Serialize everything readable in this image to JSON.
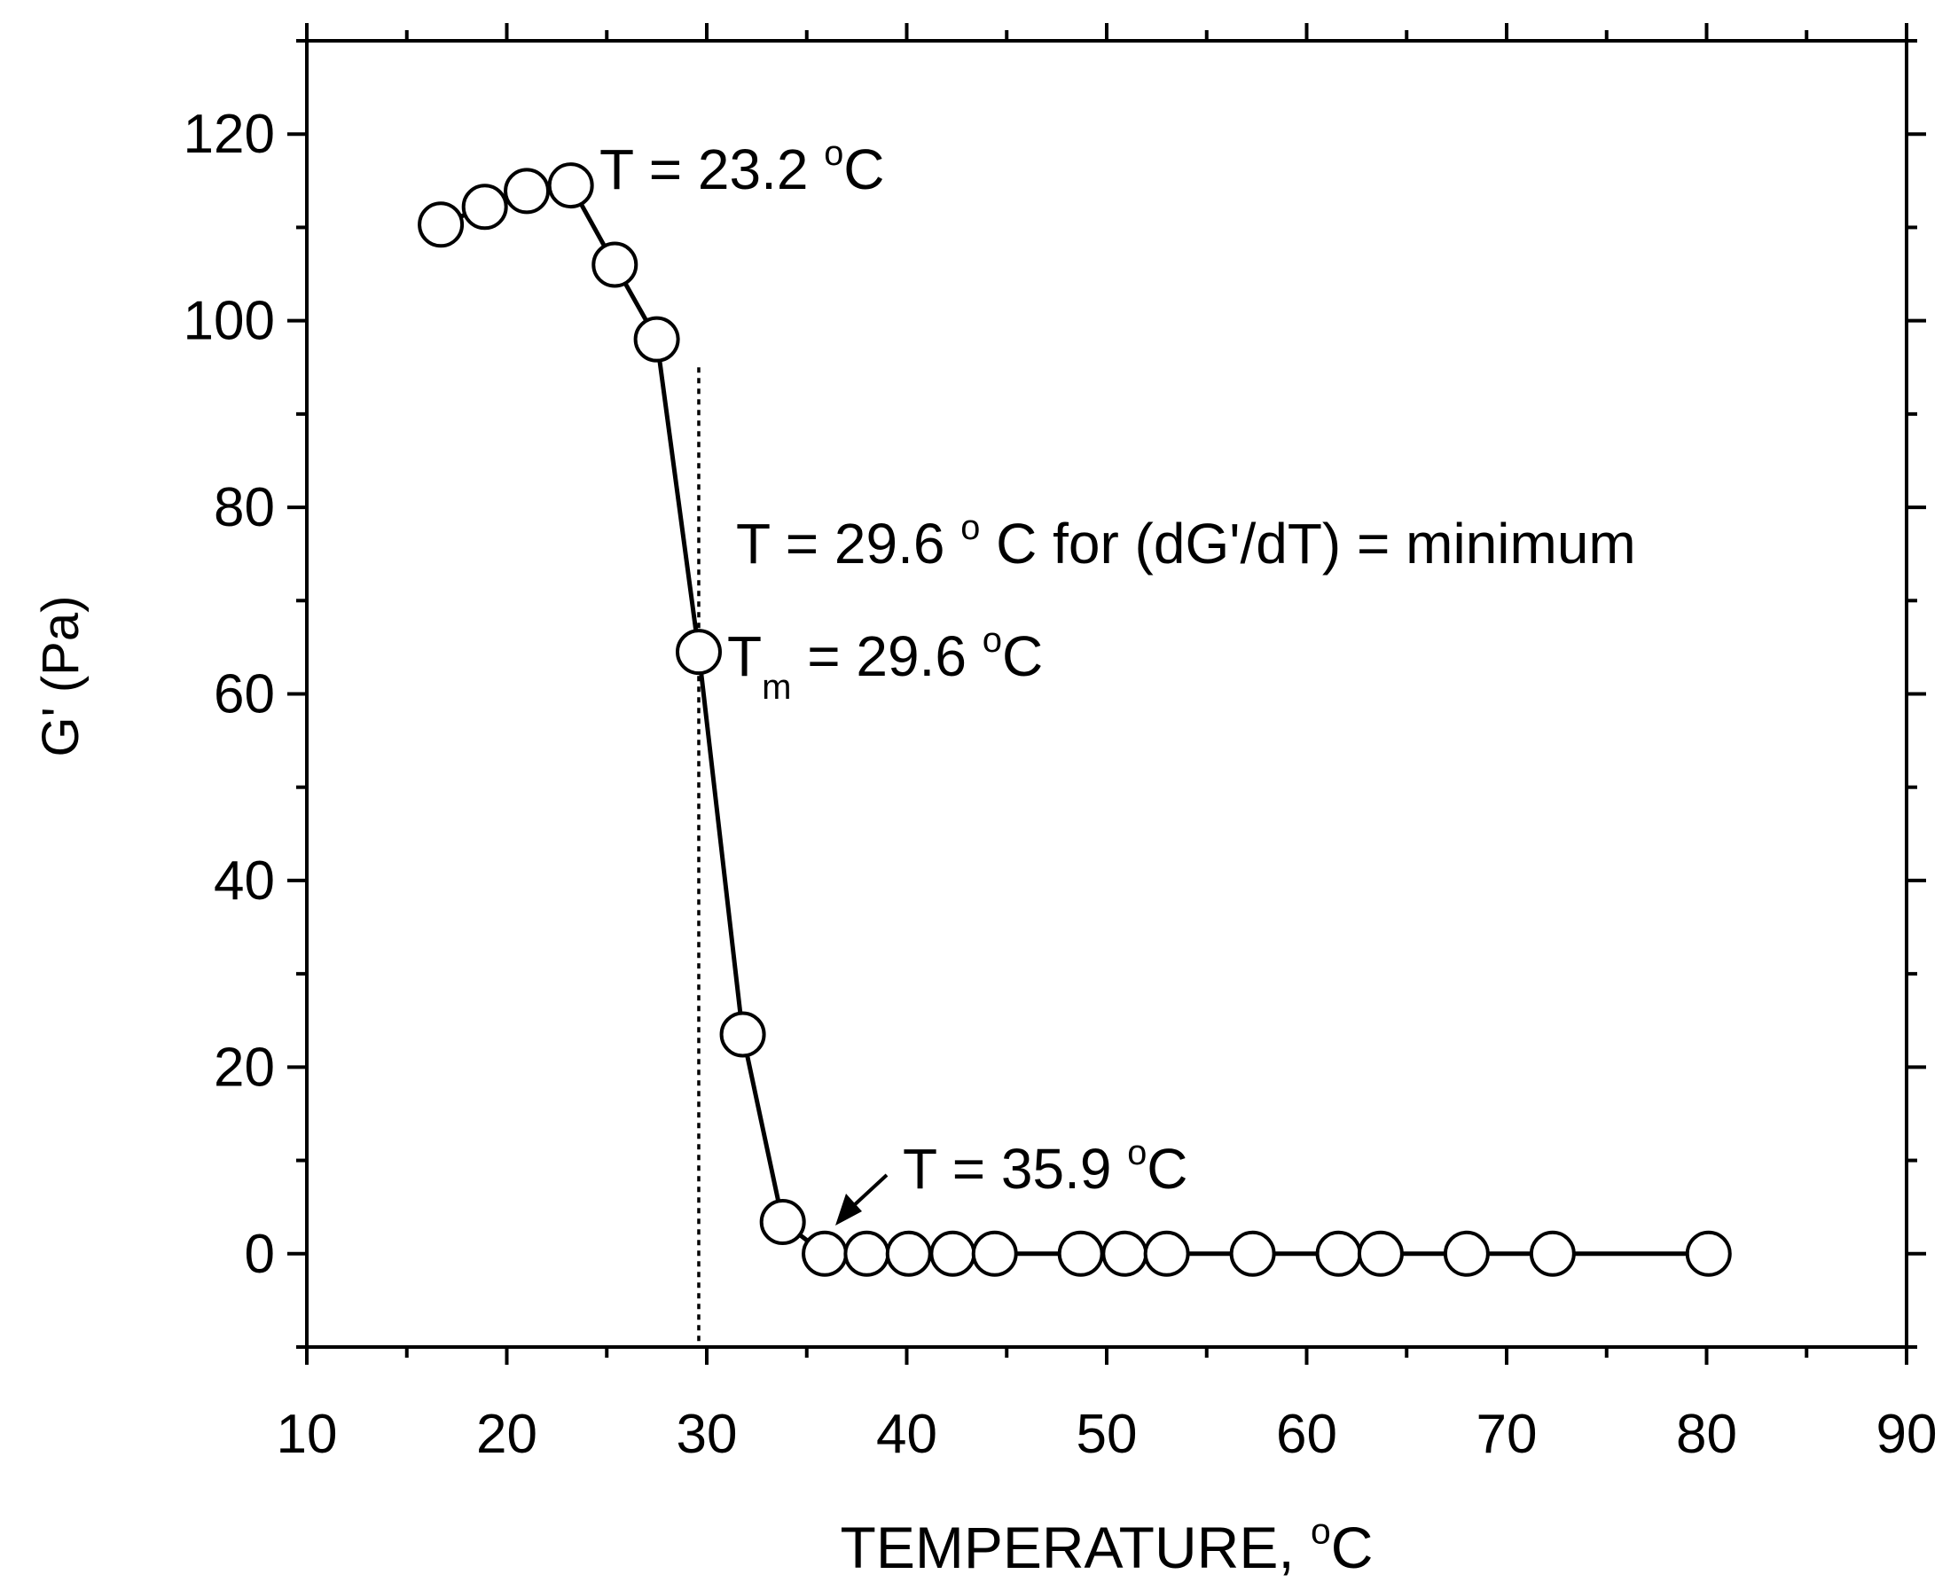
{
  "chart_data": {
    "type": "scatter",
    "xlabel": "TEMPERATURE, ",
    "xlabel_unit": "C",
    "ylabel": "G' (Pa)",
    "xlim": [
      10,
      90
    ],
    "ylim": [
      -10,
      130
    ],
    "x_ticks": [
      10,
      20,
      30,
      40,
      50,
      60,
      70,
      80,
      90
    ],
    "y_ticks": [
      0,
      20,
      40,
      60,
      80,
      100,
      120
    ],
    "x_tick_labels": [
      "10",
      "20",
      "30",
      "40",
      "50",
      "60",
      "70",
      "80",
      "90"
    ],
    "y_tick_labels": [
      "0",
      "20",
      "40",
      "60",
      "80",
      "100",
      "120"
    ],
    "grid": false,
    "marker": "open-circle",
    "line_color": "#000000",
    "series": [
      {
        "x": [
          16.7,
          18.9,
          21.0,
          23.2,
          25.4,
          27.5,
          29.6,
          31.8,
          33.8,
          35.9,
          38.0,
          40.1,
          42.3,
          44.4,
          48.7,
          50.9,
          53.0,
          57.3,
          61.6,
          63.7,
          68.0,
          72.3,
          80.1
        ],
        "y": [
          110.3,
          112.2,
          113.9,
          114.5,
          106.0,
          98.0,
          64.5,
          23.5,
          3.4,
          0,
          0,
          0,
          0,
          0,
          0,
          0,
          0,
          0,
          0,
          0,
          0,
          0,
          0
        ]
      }
    ],
    "reference_line": {
      "x": 29.6,
      "y_range": [
        -10,
        95
      ],
      "style": "dotted"
    },
    "annotations": [
      {
        "id": "onset",
        "text": "T = 23.2 ",
        "unit": "C"
      },
      {
        "id": "minimum",
        "text": "T = 29.6 ",
        "unit": " C for (dG'/dT) = minimum"
      },
      {
        "id": "tm",
        "text": "T",
        "sub": "m",
        "rest": " = 29.6 ",
        "unit": "C"
      },
      {
        "id": "end",
        "text": "T = 35.9 ",
        "unit": "C"
      }
    ],
    "degree_symbol": "o"
  }
}
